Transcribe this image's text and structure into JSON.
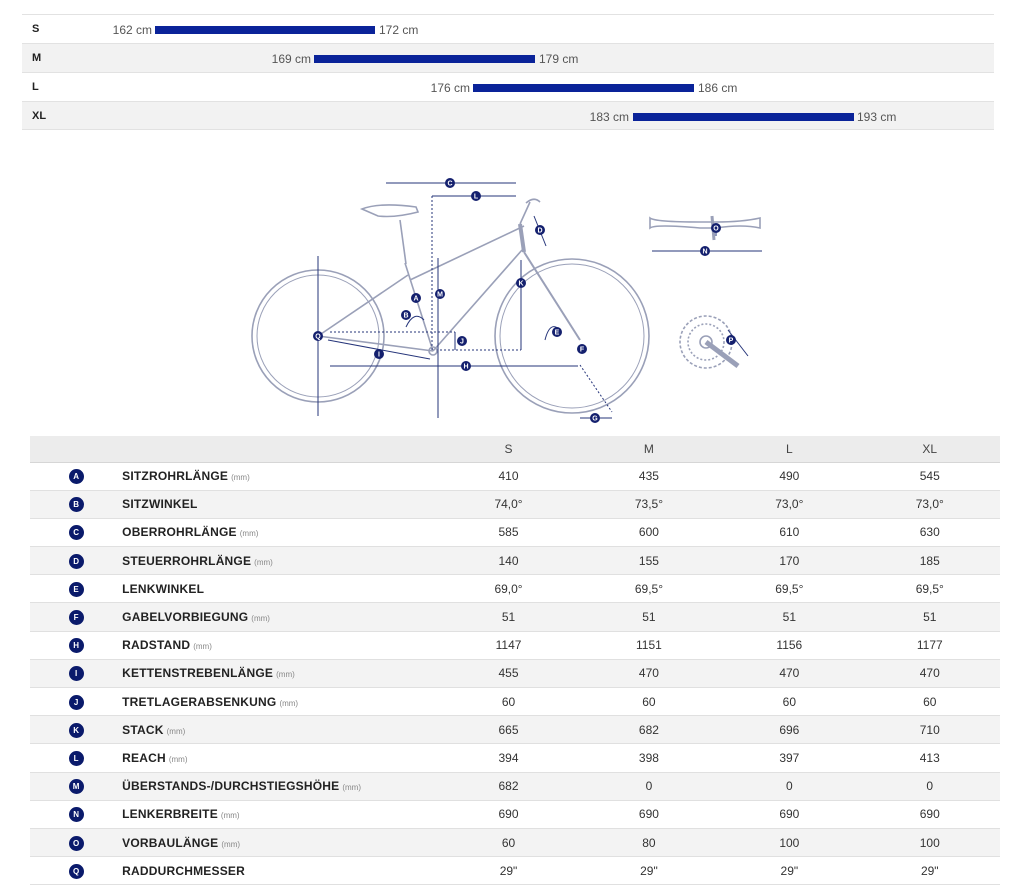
{
  "size_range": [
    {
      "size": "S",
      "min": "162 cm",
      "max": "172 cm"
    },
    {
      "size": "M",
      "min": "169 cm",
      "max": "179 cm"
    },
    {
      "size": "L",
      "min": "176 cm",
      "max": "186 cm"
    },
    {
      "size": "XL",
      "min": "183 cm",
      "max": "193 cm"
    }
  ],
  "diagram_labels": {
    "A": "A",
    "B": "B",
    "C": "C",
    "D": "D",
    "E": "E",
    "F": "F",
    "G": "G",
    "H": "H",
    "I": "I",
    "J": "J",
    "K": "K",
    "L": "L",
    "M": "M",
    "N": "N",
    "O": "O",
    "P": "P",
    "Q": "Q"
  },
  "table": {
    "headers": [
      "S",
      "M",
      "L",
      "XL"
    ],
    "rows": [
      {
        "letter": "A",
        "name": "SITZROHRLÄNGE",
        "unit": "(mm)",
        "values": [
          "410",
          "435",
          "490",
          "545"
        ]
      },
      {
        "letter": "B",
        "name": "SITZWINKEL",
        "unit": "",
        "values": [
          "74,0°",
          "73,5°",
          "73,0°",
          "73,0°"
        ]
      },
      {
        "letter": "C",
        "name": "OBERROHRLÄNGE",
        "unit": "(mm)",
        "values": [
          "585",
          "600",
          "610",
          "630"
        ]
      },
      {
        "letter": "D",
        "name": "STEUERROHRLÄNGE",
        "unit": "(mm)",
        "values": [
          "140",
          "155",
          "170",
          "185"
        ]
      },
      {
        "letter": "E",
        "name": "LENKWINKEL",
        "unit": "",
        "values": [
          "69,0°",
          "69,5°",
          "69,5°",
          "69,5°"
        ]
      },
      {
        "letter": "F",
        "name": "GABELVORBIEGUNG",
        "unit": "(mm)",
        "values": [
          "51",
          "51",
          "51",
          "51"
        ]
      },
      {
        "letter": "H",
        "name": "RADSTAND",
        "unit": "(mm)",
        "values": [
          "1147",
          "1151",
          "1156",
          "1177"
        ]
      },
      {
        "letter": "I",
        "name": "KETTENSTREBENLÄNGE",
        "unit": "(mm)",
        "values": [
          "455",
          "470",
          "470",
          "470"
        ]
      },
      {
        "letter": "J",
        "name": "TRETLAGERABSENKUNG",
        "unit": "(mm)",
        "values": [
          "60",
          "60",
          "60",
          "60"
        ]
      },
      {
        "letter": "K",
        "name": "STACK",
        "unit": "(mm)",
        "values": [
          "665",
          "682",
          "696",
          "710"
        ]
      },
      {
        "letter": "L",
        "name": "REACH",
        "unit": "(mm)",
        "values": [
          "394",
          "398",
          "397",
          "413"
        ]
      },
      {
        "letter": "M",
        "name": "ÜBERSTANDS-/DURCHSTIEGSHÖHE",
        "unit": "(mm)",
        "values": [
          "682",
          "0",
          "0",
          "0"
        ]
      },
      {
        "letter": "N",
        "name": "LENKERBREITE",
        "unit": "(mm)",
        "values": [
          "690",
          "690",
          "690",
          "690"
        ]
      },
      {
        "letter": "O",
        "name": "VORBAULÄNGE",
        "unit": "(mm)",
        "values": [
          "60",
          "80",
          "100",
          "100"
        ]
      },
      {
        "letter": "Q",
        "name": "RADDURCHMESSER",
        "unit": "",
        "values": [
          "29\"",
          "29\"",
          "29\"",
          "29\""
        ]
      }
    ]
  }
}
